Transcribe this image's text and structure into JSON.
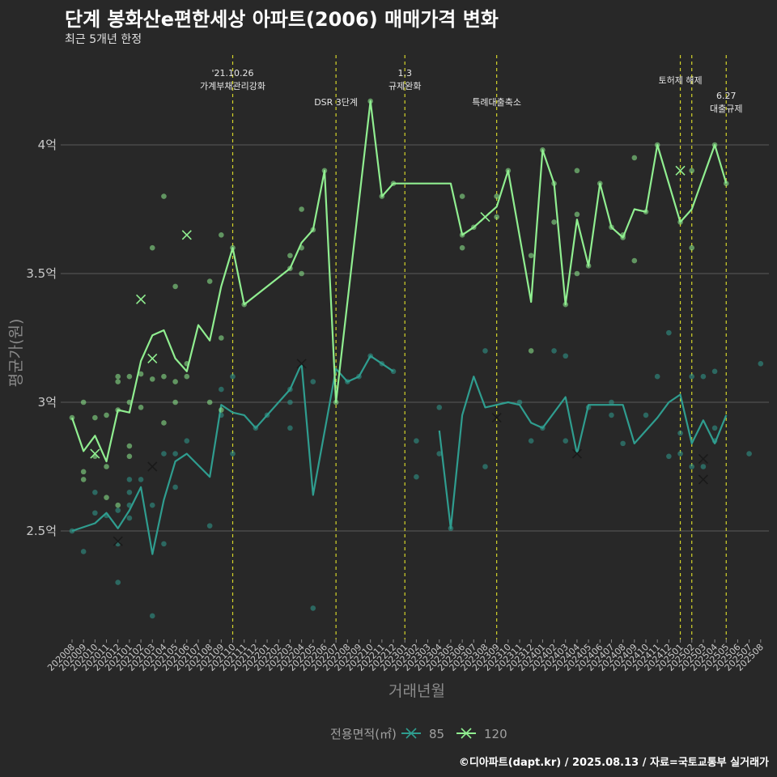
{
  "chart_data": {
    "type": "line",
    "title": "단계 봉화산e편한세상 아파트(2006) 매매가격 변화",
    "subtitle": "최근 5개년 한정",
    "xlabel": "거래년월",
    "ylabel": "평균가(원)",
    "footer": "©디아파트(dapt.kr) / 2025.08.13 / 자료=국토교통부 실거래가",
    "categories": [
      "202008",
      "202009",
      "202010",
      "202011",
      "202012",
      "202101",
      "202102",
      "202103",
      "202104",
      "202105",
      "202106",
      "202107",
      "202108",
      "202109",
      "202110",
      "202111",
      "202112",
      "202201",
      "202202",
      "202203",
      "202204",
      "202205",
      "202206",
      "202207",
      "202208",
      "202209",
      "202210",
      "202211",
      "202212",
      "202301",
      "202302",
      "202303",
      "202304",
      "202305",
      "202306",
      "202307",
      "202308",
      "202309",
      "202310",
      "202311",
      "202312",
      "202401",
      "202402",
      "202403",
      "202404",
      "202405",
      "202406",
      "202407",
      "202408",
      "202409",
      "202410",
      "202411",
      "202412",
      "202501",
      "202502",
      "202503",
      "202504",
      "202505",
      "202506",
      "202507",
      "202508"
    ],
    "y_ticks": [
      {
        "value": 2.5,
        "label": "2.5억"
      },
      {
        "value": 3.0,
        "label": "3억"
      },
      {
        "value": 3.5,
        "label": "3.5억"
      },
      {
        "value": 4.0,
        "label": "4억"
      }
    ],
    "ylim": [
      2.1,
      4.35
    ],
    "y_unit": "억",
    "grid": true,
    "legend_title": "전용면적(㎡)",
    "legend_position": "bottom",
    "series": [
      {
        "name": "85",
        "color": "#2f9d8f",
        "line": [
          [
            0,
            2.5
          ],
          [
            2,
            2.53
          ],
          [
            3,
            2.57
          ],
          [
            4,
            2.51
          ],
          [
            5,
            2.58
          ],
          [
            6,
            2.67
          ],
          [
            7,
            2.41
          ],
          [
            8,
            2.62
          ],
          [
            9,
            2.77
          ],
          [
            10,
            2.8
          ],
          [
            12,
            2.71
          ],
          [
            13,
            2.99
          ],
          [
            14,
            2.96
          ],
          [
            15,
            2.95
          ],
          [
            16,
            2.9
          ],
          [
            19,
            3.05
          ],
          [
            20,
            3.15
          ],
          [
            21,
            2.64
          ],
          [
            23,
            3.13
          ],
          [
            24,
            3.08
          ],
          [
            25,
            3.1
          ],
          [
            26,
            3.18
          ],
          [
            27,
            3.15
          ],
          [
            28,
            3.12
          ],
          null,
          [
            32,
            2.89
          ],
          [
            33,
            2.51
          ],
          [
            34,
            2.95
          ],
          [
            35,
            3.1
          ],
          [
            36,
            2.98
          ],
          [
            38,
            3.0
          ],
          [
            39,
            2.99
          ],
          [
            40,
            2.92
          ],
          [
            41,
            2.9
          ],
          [
            43,
            3.02
          ],
          [
            44,
            2.8
          ],
          [
            45,
            2.99
          ],
          [
            48,
            2.99
          ],
          [
            49,
            2.84
          ],
          [
            51,
            2.94
          ],
          [
            52,
            3.0
          ],
          [
            53,
            3.03
          ],
          [
            54,
            2.84
          ],
          [
            55,
            2.93
          ],
          [
            56,
            2.84
          ],
          [
            57,
            2.95
          ]
        ],
        "points": [
          [
            0,
            2.5
          ],
          [
            1,
            2.42
          ],
          [
            2,
            2.57
          ],
          [
            2,
            2.65
          ],
          [
            3,
            2.56
          ],
          [
            4,
            2.3
          ],
          [
            4,
            2.45
          ],
          [
            4,
            2.58
          ],
          [
            5,
            2.55
          ],
          [
            5,
            2.6
          ],
          [
            5,
            2.65
          ],
          [
            5,
            2.7
          ],
          [
            6,
            2.7
          ],
          [
            7,
            2.17
          ],
          [
            7,
            2.6
          ],
          [
            8,
            2.45
          ],
          [
            8,
            2.8
          ],
          [
            9,
            2.67
          ],
          [
            9,
            2.8
          ],
          [
            10,
            2.85
          ],
          [
            12,
            2.52
          ],
          [
            13,
            2.95
          ],
          [
            13,
            3.05
          ],
          [
            14,
            2.8
          ],
          [
            14,
            3.1
          ],
          [
            16,
            2.9
          ],
          [
            17,
            2.95
          ],
          [
            19,
            2.9
          ],
          [
            19,
            3.0
          ],
          [
            19,
            3.05
          ],
          [
            21,
            2.2
          ],
          [
            21,
            3.08
          ],
          [
            24,
            3.08
          ],
          [
            25,
            3.1
          ],
          [
            26,
            3.18
          ],
          [
            27,
            3.15
          ],
          [
            28,
            3.12
          ],
          [
            30,
            2.85
          ],
          [
            30,
            2.71
          ],
          [
            32,
            2.8
          ],
          [
            32,
            2.98
          ],
          [
            33,
            2.51
          ],
          [
            36,
            2.75
          ],
          [
            36,
            3.2
          ],
          [
            39,
            3.0
          ],
          [
            40,
            2.85
          ],
          [
            41,
            2.9
          ],
          [
            42,
            3.2
          ],
          [
            43,
            2.85
          ],
          [
            43,
            3.18
          ],
          [
            45,
            2.98
          ],
          [
            47,
            2.95
          ],
          [
            47,
            3.0
          ],
          [
            48,
            2.84
          ],
          [
            50,
            2.95
          ],
          [
            51,
            3.1
          ],
          [
            52,
            3.27
          ],
          [
            52,
            2.79
          ],
          [
            53,
            2.8
          ],
          [
            53,
            2.88
          ],
          [
            54,
            2.75
          ],
          [
            54,
            3.1
          ],
          [
            55,
            2.75
          ],
          [
            55,
            3.1
          ],
          [
            56,
            2.9
          ],
          [
            56,
            2.85
          ],
          [
            56,
            3.12
          ],
          [
            59,
            2.8
          ],
          [
            60,
            3.15
          ]
        ],
        "markers_x": [
          [
            7,
            2.75
          ],
          [
            4,
            2.46
          ],
          [
            20,
            3.15
          ],
          [
            37,
            2.94
          ],
          [
            44,
            2.8
          ],
          [
            55,
            2.78
          ],
          [
            55,
            2.7
          ]
        ]
      },
      {
        "name": "120",
        "color": "#90ee90",
        "line": [
          [
            0,
            2.94
          ],
          [
            1,
            2.81
          ],
          [
            2,
            2.87
          ],
          [
            3,
            2.77
          ],
          [
            4,
            2.97
          ],
          [
            5,
            2.96
          ],
          [
            6,
            3.16
          ],
          [
            7,
            3.26
          ],
          [
            8,
            3.28
          ],
          [
            9,
            3.17
          ],
          [
            10,
            3.12
          ],
          [
            11,
            3.3
          ],
          [
            12,
            3.24
          ],
          [
            13,
            3.45
          ],
          [
            14,
            3.6
          ],
          [
            15,
            3.38
          ],
          [
            19,
            3.52
          ],
          [
            20,
            3.62
          ],
          [
            21,
            3.67
          ],
          [
            22,
            3.9
          ],
          [
            23,
            3.0
          ],
          [
            26,
            4.17
          ],
          [
            27,
            3.8
          ],
          [
            28,
            3.85
          ],
          [
            33,
            3.85
          ],
          [
            34,
            3.65
          ],
          [
            35,
            3.68
          ],
          [
            37,
            3.76
          ],
          [
            38,
            3.9
          ],
          [
            40,
            3.39
          ],
          [
            41,
            3.98
          ],
          [
            42,
            3.85
          ],
          [
            43,
            3.38
          ],
          [
            44,
            3.71
          ],
          [
            45,
            3.53
          ],
          [
            46,
            3.85
          ],
          [
            47,
            3.68
          ],
          [
            48,
            3.64
          ],
          [
            49,
            3.75
          ],
          [
            50,
            3.74
          ],
          [
            51,
            4.0
          ],
          [
            53,
            3.7
          ],
          [
            54,
            3.75
          ],
          [
            56,
            4.0
          ],
          [
            57,
            3.85
          ]
        ],
        "points": [
          [
            0,
            2.94
          ],
          [
            1,
            2.7
          ],
          [
            1,
            2.73
          ],
          [
            1,
            3.0
          ],
          [
            2,
            2.94
          ],
          [
            2,
            2.79
          ],
          [
            3,
            2.95
          ],
          [
            3,
            2.75
          ],
          [
            3,
            2.63
          ],
          [
            4,
            3.1
          ],
          [
            4,
            3.08
          ],
          [
            4,
            2.6
          ],
          [
            4,
            2.97
          ],
          [
            5,
            3.1
          ],
          [
            5,
            2.83
          ],
          [
            5,
            2.79
          ],
          [
            5,
            3.0
          ],
          [
            6,
            2.98
          ],
          [
            6,
            3.11
          ],
          [
            7,
            3.6
          ],
          [
            7,
            3.09
          ],
          [
            8,
            3.1
          ],
          [
            8,
            3.8
          ],
          [
            8,
            2.92
          ],
          [
            9,
            3.45
          ],
          [
            9,
            3.0
          ],
          [
            9,
            3.08
          ],
          [
            10,
            3.1
          ],
          [
            10,
            3.15
          ],
          [
            12,
            3.47
          ],
          [
            12,
            3.0
          ],
          [
            13,
            3.25
          ],
          [
            13,
            3.65
          ],
          [
            13,
            2.97
          ],
          [
            14,
            3.6
          ],
          [
            15,
            3.38
          ],
          [
            19,
            3.57
          ],
          [
            19,
            3.52
          ],
          [
            20,
            3.75
          ],
          [
            20,
            3.6
          ],
          [
            20,
            3.5
          ],
          [
            21,
            3.67
          ],
          [
            22,
            3.9
          ],
          [
            23,
            3.0
          ],
          [
            26,
            4.17
          ],
          [
            27,
            3.8
          ],
          [
            28,
            3.85
          ],
          [
            34,
            3.6
          ],
          [
            34,
            3.65
          ],
          [
            34,
            3.8
          ],
          [
            35,
            3.68
          ],
          [
            37,
            3.72
          ],
          [
            37,
            3.8
          ],
          [
            38,
            3.9
          ],
          [
            40,
            3.57
          ],
          [
            40,
            3.2
          ],
          [
            41,
            3.98
          ],
          [
            42,
            3.7
          ],
          [
            42,
            3.85
          ],
          [
            43,
            3.38
          ],
          [
            44,
            3.9
          ],
          [
            44,
            3.73
          ],
          [
            44,
            3.5
          ],
          [
            45,
            3.53
          ],
          [
            46,
            3.85
          ],
          [
            47,
            3.68
          ],
          [
            48,
            3.65
          ],
          [
            48,
            3.64
          ],
          [
            49,
            3.95
          ],
          [
            49,
            3.55
          ],
          [
            50,
            3.74
          ],
          [
            51,
            4.0
          ],
          [
            53,
            3.7
          ],
          [
            54,
            3.9
          ],
          [
            54,
            3.6
          ],
          [
            56,
            4.0
          ],
          [
            57,
            3.85
          ]
        ],
        "markers_x": [
          [
            2,
            2.8
          ],
          [
            6,
            3.4
          ],
          [
            7,
            3.17
          ],
          [
            10,
            3.65
          ],
          [
            36,
            3.72
          ],
          [
            53,
            3.9
          ]
        ]
      }
    ],
    "annotations": [
      {
        "x": 14,
        "lines": [
          "'21.10.26",
          "가계부채관리강화"
        ],
        "level": "high"
      },
      {
        "x": 23,
        "lines": [
          "DSR 3단계"
        ],
        "level": "mid"
      },
      {
        "x": 29,
        "lines": [
          "1.3",
          "규제완화"
        ],
        "level": "high"
      },
      {
        "x": 37,
        "lines": [
          "특례대출축소"
        ],
        "level": "mid"
      },
      {
        "x": 53,
        "lines": [
          "토허제 해제"
        ],
        "level": "high2"
      },
      {
        "x": 54,
        "lines": [],
        "level": "none"
      },
      {
        "x": 57,
        "lines": [
          "6.27",
          "대출규제"
        ],
        "level": "low"
      }
    ],
    "vline_color": "#d4d42a"
  }
}
